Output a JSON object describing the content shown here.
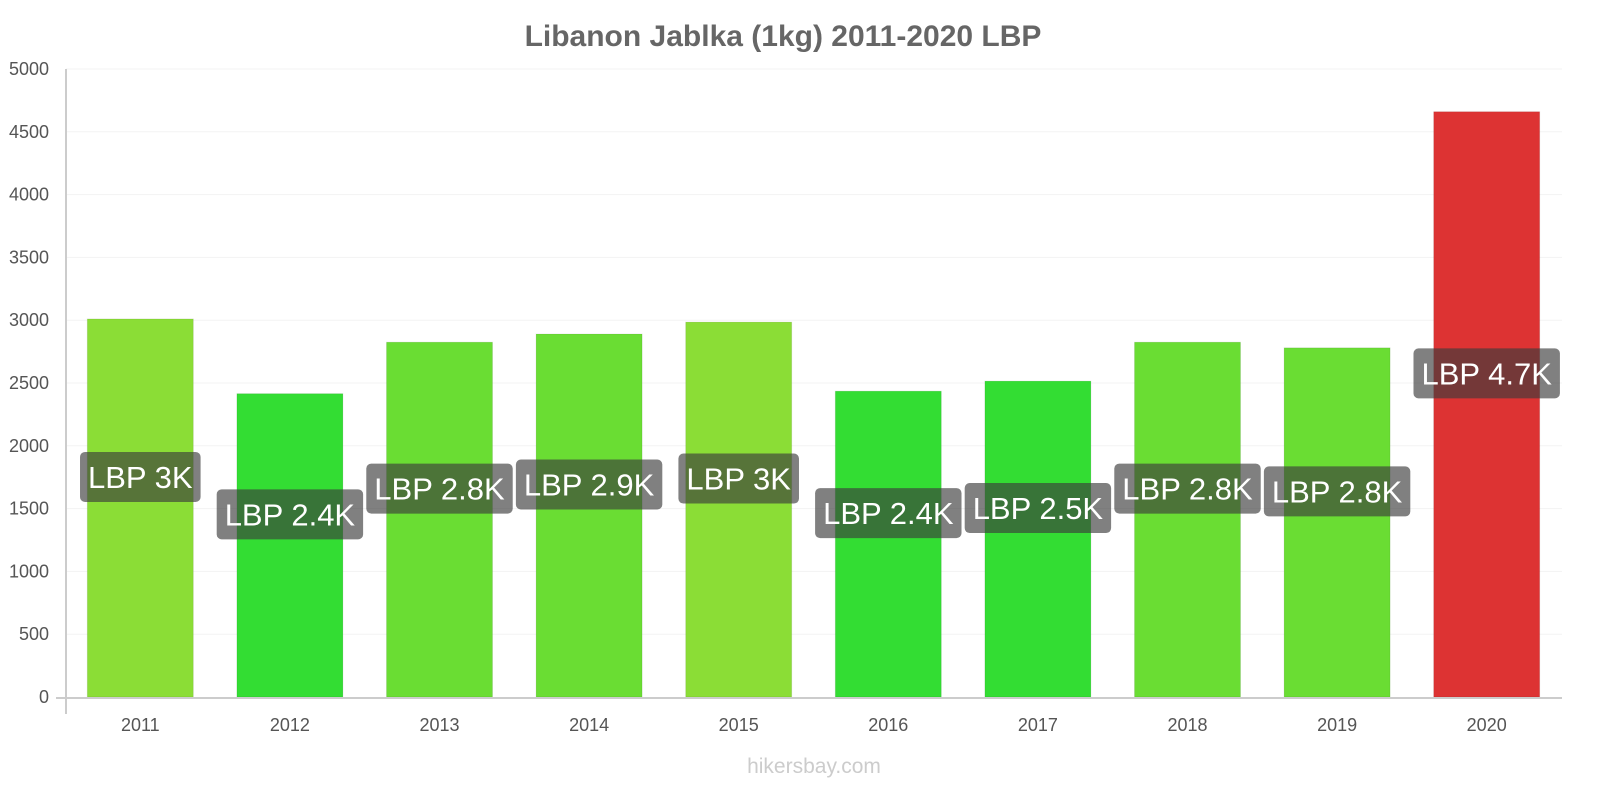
{
  "chart_data": {
    "type": "bar",
    "title": "Libanon Jablka (1kg) 2011-2020 LBP",
    "categories": [
      "2011",
      "2012",
      "2013",
      "2014",
      "2015",
      "2016",
      "2017",
      "2018",
      "2019",
      "2020"
    ],
    "values": [
      3010,
      2415,
      2825,
      2890,
      2985,
      2435,
      2515,
      2825,
      2780,
      4660
    ],
    "data_labels": [
      "LBP 3K",
      "LBP 2.4K",
      "LBP 2.8K",
      "LBP 2.9K",
      "LBP 3K",
      "LBP 2.4K",
      "LBP 2.5K",
      "LBP 2.8K",
      "LBP 2.8K",
      "LBP 4.7K"
    ],
    "colors": [
      "#8bdd36",
      "#33dd33",
      "#6add33",
      "#6add33",
      "#8bdd36",
      "#33dd33",
      "#33dd33",
      "#6add33",
      "#6add33",
      "#dd3333"
    ],
    "ylim": [
      0,
      5000
    ],
    "yticks": [
      0,
      500,
      1000,
      1500,
      2000,
      2500,
      3000,
      3500,
      4000,
      4500,
      5000
    ],
    "xlabel": "",
    "ylabel": "",
    "grid": true
  },
  "watermark": "hikersbay.com"
}
